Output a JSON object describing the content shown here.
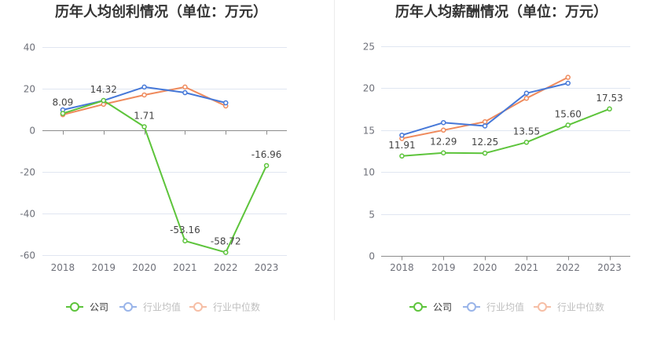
{
  "chart_data": [
    {
      "type": "line",
      "title": "历年人均创利情况（单位：万元）",
      "categories": [
        "2018",
        "2019",
        "2020",
        "2021",
        "2022",
        "2023"
      ],
      "yticks": [
        40,
        20,
        0,
        -20,
        -40,
        -60
      ],
      "ylim": [
        -60,
        40
      ],
      "grid": true,
      "legend": "bottom",
      "series": [
        {
          "name": "公司",
          "color": "#5dc43b",
          "values": [
            8.09,
            14.32,
            1.71,
            -53.16,
            -58.72,
            -16.96
          ],
          "data_labels": [
            "8.09",
            "14.32",
            "1.71",
            "-53.16",
            "-58.72",
            "-16.96"
          ]
        },
        {
          "name": "行业均值",
          "color": "#4678d8",
          "values": [
            9.8,
            14.3,
            20.8,
            18.1,
            13.2,
            null
          ]
        },
        {
          "name": "行业中位数",
          "color": "#ef8a5c",
          "values": [
            7.5,
            12.5,
            17.0,
            20.8,
            11.7,
            null
          ]
        }
      ]
    },
    {
      "type": "line",
      "title": "历年人均薪酬情况（单位：万元）",
      "categories": [
        "2018",
        "2019",
        "2020",
        "2021",
        "2022",
        "2023"
      ],
      "yticks": [
        25,
        20,
        15,
        10,
        5,
        0
      ],
      "ylim": [
        0,
        25
      ],
      "grid": true,
      "legend": "bottom",
      "series": [
        {
          "name": "公司",
          "color": "#5dc43b",
          "values": [
            11.91,
            12.29,
            12.25,
            13.55,
            15.6,
            17.53
          ],
          "data_labels": [
            "11.91",
            "12.29",
            "12.25",
            "13.55",
            "15.60",
            "17.53"
          ]
        },
        {
          "name": "行业均值",
          "color": "#4678d8",
          "values": [
            14.4,
            15.9,
            15.5,
            19.4,
            20.6,
            null
          ]
        },
        {
          "name": "行业中位数",
          "color": "#ef8a5c",
          "values": [
            14.0,
            15.0,
            16.0,
            18.8,
            21.3,
            null
          ]
        }
      ]
    }
  ]
}
